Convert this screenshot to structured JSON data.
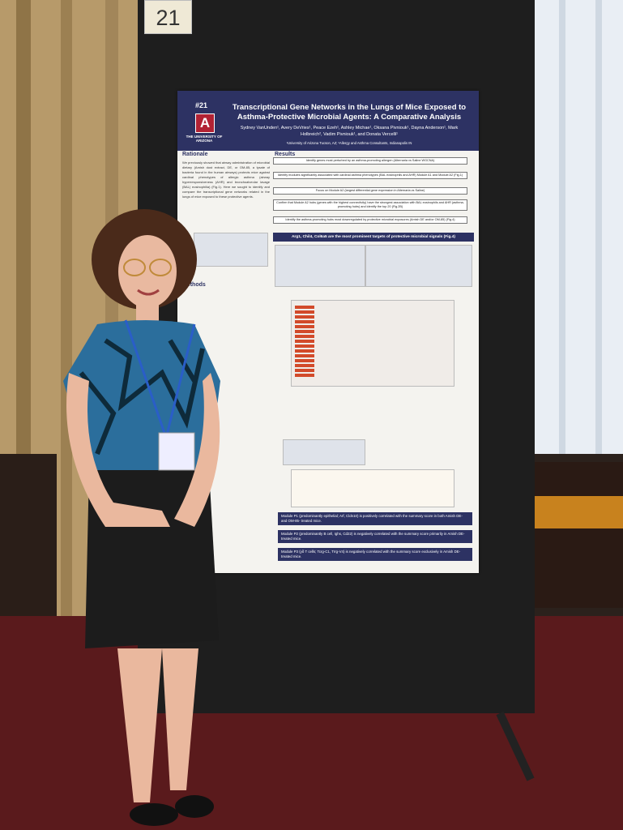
{
  "poster_number": "21",
  "poster": {
    "id": "#21",
    "title": "Transcriptional Gene Networks in the Lungs of Mice Exposed to Asthma-Protective Microbial Agents: A Comparative Analysis",
    "logo": {
      "letter": "A",
      "name": "THE UNIVERSITY OF ARIZONA"
    },
    "authors": "Sydney VanUnden¹, Avery DeVries¹, Peace Ezeh¹, Ashley Michae¹, Oksana Pivniouk¹, Dayna Anderson¹, Mark Holbreich², Vadim Pivniouk¹, and Donata Vercelli¹",
    "affiliations": "¹University of Arizona Tucson, AZ; ²Allergy and Asthma Consultants, Indianapolis IN",
    "sections": {
      "rationale": "Rationale",
      "results": "Results",
      "methods": "Methods"
    },
    "rationale_text": "We previously showed that airway administration of microbial dietary (Amish dust extract, DE, or OM-85, a lysate of bacteria found in the human airways) protects mice against cardinal phenotypes of allergic asthma (airway hyperresponsiveness (AHR) and bronchoalveolar lavage (BAL) eosinophilia) (Fig.1). Here we sought to identify and compare the transcriptional gene networks related in the lungs of mice exposed to these protective agents.",
    "flow": [
      "Identify genes most perturbed by an asthma-promoting allergen (Alternaria vs Saline WGCNA)",
      "Identify modules significantly associated with cardinal asthma phenotypes (BAL eosinophils and AHR) Module A1 and Module A2 (Fig.1)",
      "Focus on Module A2 (largest differential gene expression in Alternaria vs Saline)",
      "Confirm that Module A2 hubs (genes with the highest connectivity) have the strongest association with BAL eosinophils and AHR (asthma-promoting hubs) and identify the top 20 (Fig.2B)",
      "Identify the asthma-promoting hubs most downregulated by protective microbial exposures (Amish DE and/or OM-85) (Fig.4)"
    ],
    "highlight": "Arg1, Chil4, Col6a5 are the most prominent targets of protective microbial signals (Fig.4)",
    "conclusions": [
      "Module P1 (predominantly epithelial; Arf, Cldn10) is positively correlated with the summary score in both Amish DE- and OM-85- treated mice.",
      "Module P2 (predominantly B cell, Ighs, Cd22) is negatively correlated with the summary score primarily in Amish DE-treated mice.",
      "Module P3 (γδ T cells; Tcrg-C1, Trrg-V4) is negatively correlated with the summary score exclusively in Amish DE-treated mice."
    ]
  }
}
